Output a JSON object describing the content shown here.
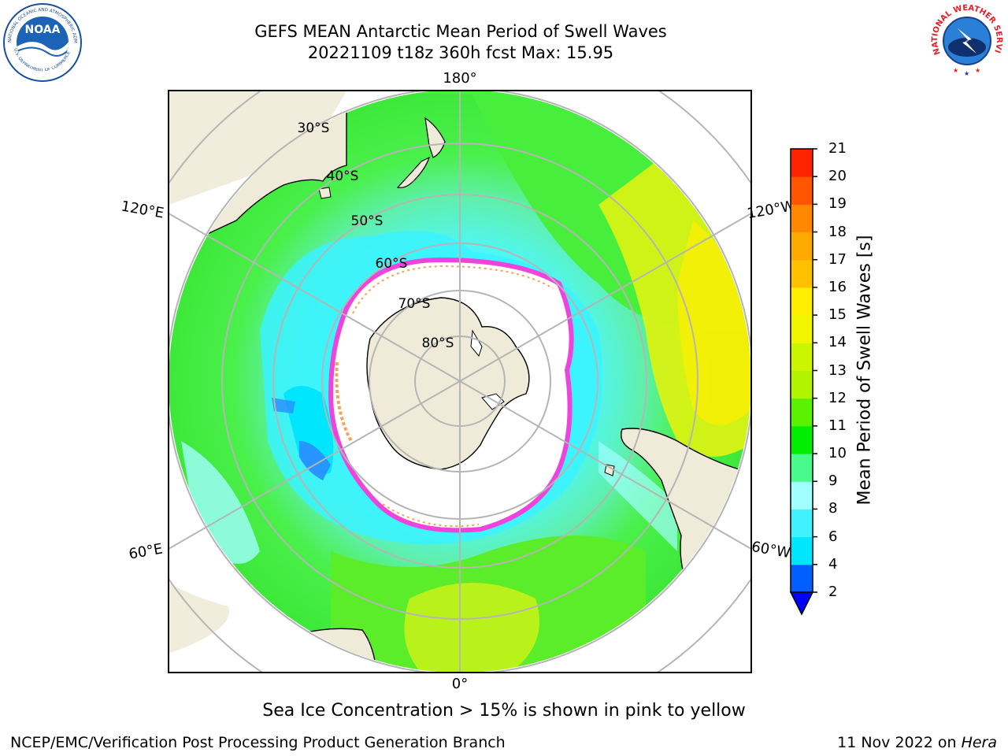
{
  "header": {
    "title_line1": "GEFS MEAN Antarctic Mean Period of Swell Waves",
    "title_line2": "20221109 t18z 360h fcst   Max: 15.95"
  },
  "logos": {
    "noaa_text": "NOAA",
    "noaa_ring_text": "NATIONAL OCEANIC AND ATMOSPHERIC ADMINISTRATION",
    "noaa_ring_text_bottom": "U.S. DEPARTMENT OF COMMERCE",
    "nws_ring_text": "NATIONAL WEATHER SERVICE"
  },
  "map": {
    "projection": "south-polar-stereographic",
    "longitude_labels": [
      "180°",
      "120°E",
      "120°W",
      "60°E",
      "60°W",
      "0°"
    ],
    "latitude_labels": [
      "30°S",
      "40°S",
      "50°S",
      "60°S",
      "70°S",
      "80°S"
    ],
    "colors": {
      "land": "#efebd8",
      "ice_free_ocean_near_pole": "#ffffff",
      "graticule": "#b5b5b5",
      "sea_ice_edge": "#ee44dd",
      "sea_ice_inner": "#f5a35a"
    }
  },
  "colorbar": {
    "title": "Mean Period of Swell Waves [s]",
    "ticks": [
      "2",
      "4",
      "6",
      "8",
      "9",
      "10",
      "11",
      "12",
      "13",
      "14",
      "15",
      "16",
      "17",
      "18",
      "19",
      "20",
      "21"
    ],
    "colors": [
      "#0060ff",
      "#00e6ff",
      "#40f2ff",
      "#a0ffff",
      "#49fb8d",
      "#00ee00",
      "#5af200",
      "#b2f400",
      "#ccf500",
      "#f2f500",
      "#ffee00",
      "#ffc000",
      "#ffaa00",
      "#ff8800",
      "#ff5500",
      "#ff2200"
    ],
    "under_color": "#0000ff"
  },
  "footer": {
    "note": "Sea Ice Concentration > 15% is shown in pink to yellow",
    "credit": "NCEP/EMC/Verification Post Processing Product Generation Branch",
    "date": "11 Nov 2022 on",
    "machine": "Hera"
  }
}
